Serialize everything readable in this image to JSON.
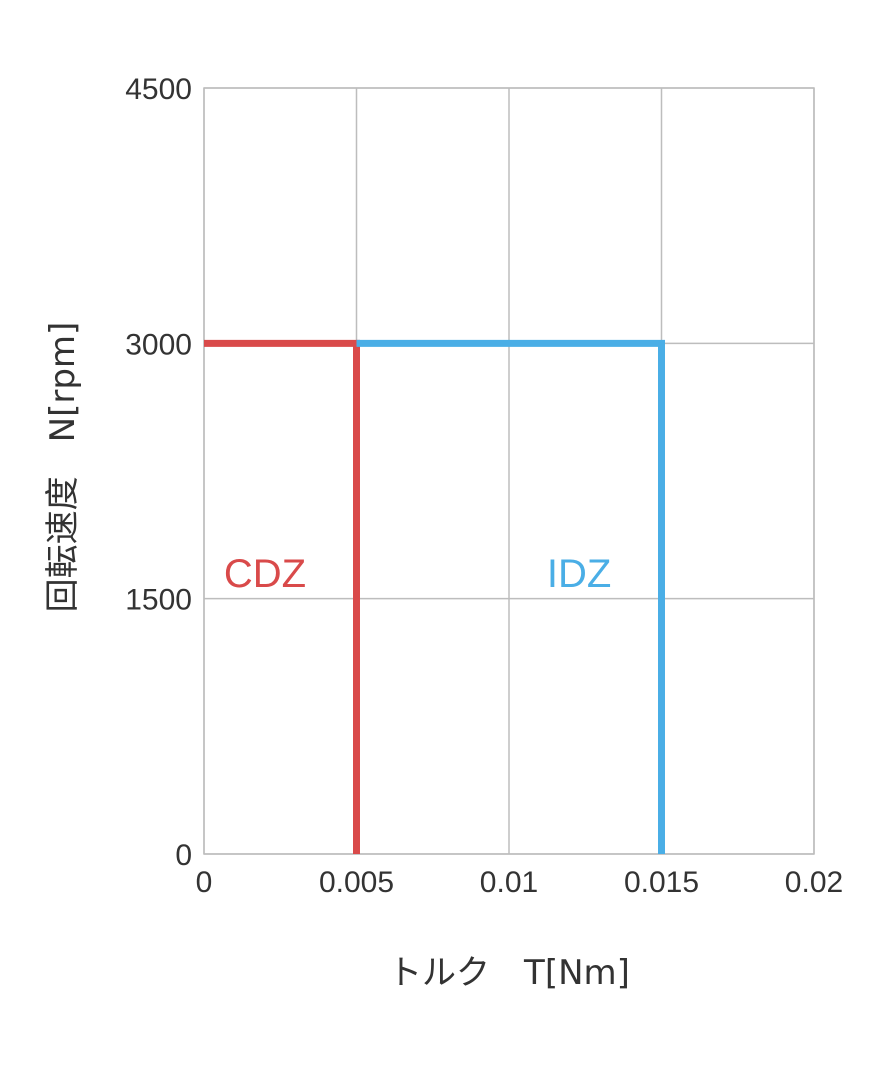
{
  "chart_data": {
    "type": "line",
    "title": "",
    "xlabel": "トルク　T[Nm]",
    "ylabel": "回転速度　N[rpm]",
    "xlim": [
      0,
      0.02
    ],
    "ylim": [
      0,
      4500
    ],
    "x_ticks": [
      0,
      0.005,
      0.01,
      0.015,
      0.02
    ],
    "x_tick_labels": [
      "0",
      "0.005",
      "0.01",
      "0.015",
      "0.02"
    ],
    "y_ticks": [
      0,
      1500,
      3000,
      4500
    ],
    "y_tick_labels": [
      "0",
      "1500",
      "3000",
      "4500"
    ],
    "grid": true,
    "legend": "none",
    "series": [
      {
        "name": "CDZ",
        "color": "#d94a4a",
        "x": [
          0,
          0.005,
          0.005
        ],
        "y": [
          3000,
          3000,
          0
        ],
        "label_anchor": {
          "x": 0.002,
          "y": 1650
        }
      },
      {
        "name": "IDZ",
        "color": "#4aaee6",
        "x": [
          0.005,
          0.015,
          0.015
        ],
        "y": [
          3000,
          3000,
          0
        ],
        "label_anchor": {
          "x": 0.0123,
          "y": 1650
        }
      }
    ]
  }
}
